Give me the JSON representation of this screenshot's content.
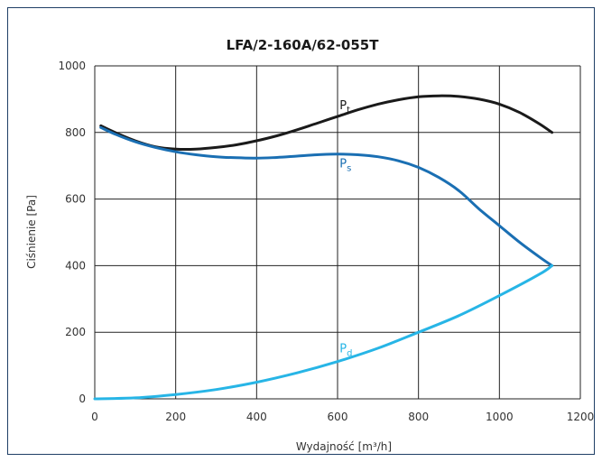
{
  "chart_data": {
    "type": "line",
    "title": "LFA/2-160A/62-055T",
    "xlabel": "Wydajność [m³/h]",
    "ylabel": "Ciśnienie [Pa]",
    "xlim": [
      0,
      1200
    ],
    "ylim": [
      0,
      1000
    ],
    "xticks": [
      "0",
      "200",
      "400",
      "600",
      "800",
      "1000",
      "1200"
    ],
    "yticks": [
      "0",
      "200",
      "400",
      "600",
      "800",
      "1000"
    ],
    "grid": true,
    "legend": "none",
    "series": [
      {
        "name": "Pt",
        "label_main": "P",
        "label_sub": "t",
        "label_at": [
          605,
          870
        ],
        "color": "#1a1a1a",
        "x": [
          15,
          50,
          100,
          150,
          200,
          250,
          300,
          350,
          400,
          450,
          500,
          550,
          600,
          650,
          700,
          750,
          800,
          850,
          900,
          950,
          1000,
          1050,
          1100,
          1130
        ],
        "y": [
          820,
          800,
          775,
          757,
          750,
          750,
          755,
          763,
          775,
          790,
          808,
          828,
          848,
          868,
          885,
          898,
          907,
          910,
          908,
          900,
          885,
          860,
          825,
          800
        ]
      },
      {
        "name": "Ps",
        "label_main": "P",
        "label_sub": "s",
        "label_at": [
          605,
          695
        ],
        "color": "#1a6fb3",
        "x": [
          15,
          50,
          100,
          150,
          200,
          250,
          300,
          350,
          400,
          450,
          500,
          550,
          600,
          650,
          700,
          750,
          800,
          850,
          900,
          950,
          1000,
          1050,
          1100,
          1130
        ],
        "y": [
          815,
          795,
          772,
          755,
          742,
          733,
          727,
          724,
          723,
          725,
          729,
          733,
          735,
          733,
          727,
          715,
          695,
          665,
          625,
          570,
          520,
          470,
          425,
          400
        ]
      },
      {
        "name": "Pd",
        "label_main": "P",
        "label_sub": "d",
        "label_at": [
          605,
          140
        ],
        "color": "#27b5e6",
        "x": [
          0,
          100,
          200,
          300,
          400,
          500,
          600,
          700,
          800,
          900,
          1000,
          1100,
          1130
        ],
        "y": [
          0,
          3,
          13,
          28,
          50,
          78,
          112,
          152,
          200,
          250,
          310,
          375,
          400
        ]
      }
    ]
  }
}
